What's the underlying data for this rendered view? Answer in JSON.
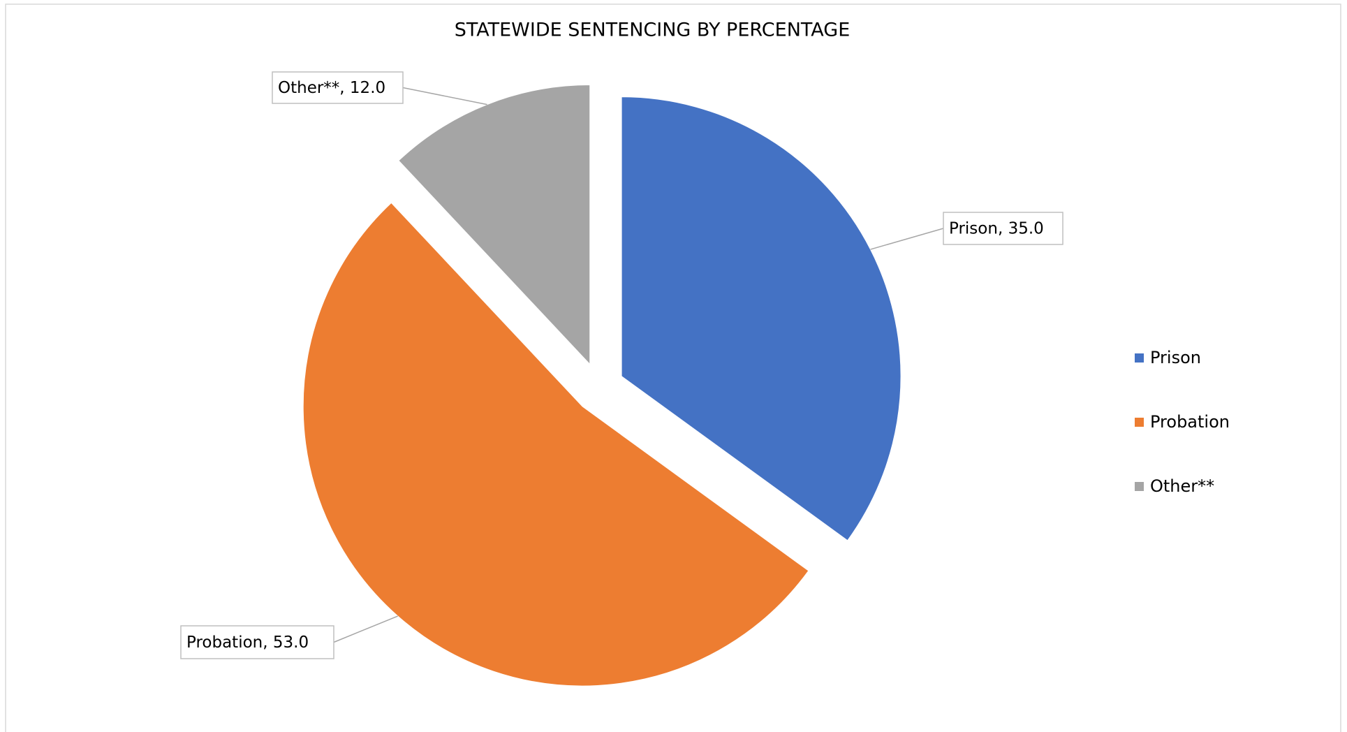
{
  "chart_data": {
    "type": "pie",
    "title": "STATEWIDE SENTENCING BY PERCENTAGE",
    "categories": [
      "Prison",
      "Probation",
      "Other**"
    ],
    "values": [
      35,
      53,
      12
    ],
    "value_labels": [
      "Prison, 35.0",
      "Probation, 53.0",
      "Other**, 12.0"
    ],
    "colors": [
      "#4472c4",
      "#ed7d31",
      "#a5a5a5"
    ],
    "legend": "right",
    "exploded": true
  }
}
